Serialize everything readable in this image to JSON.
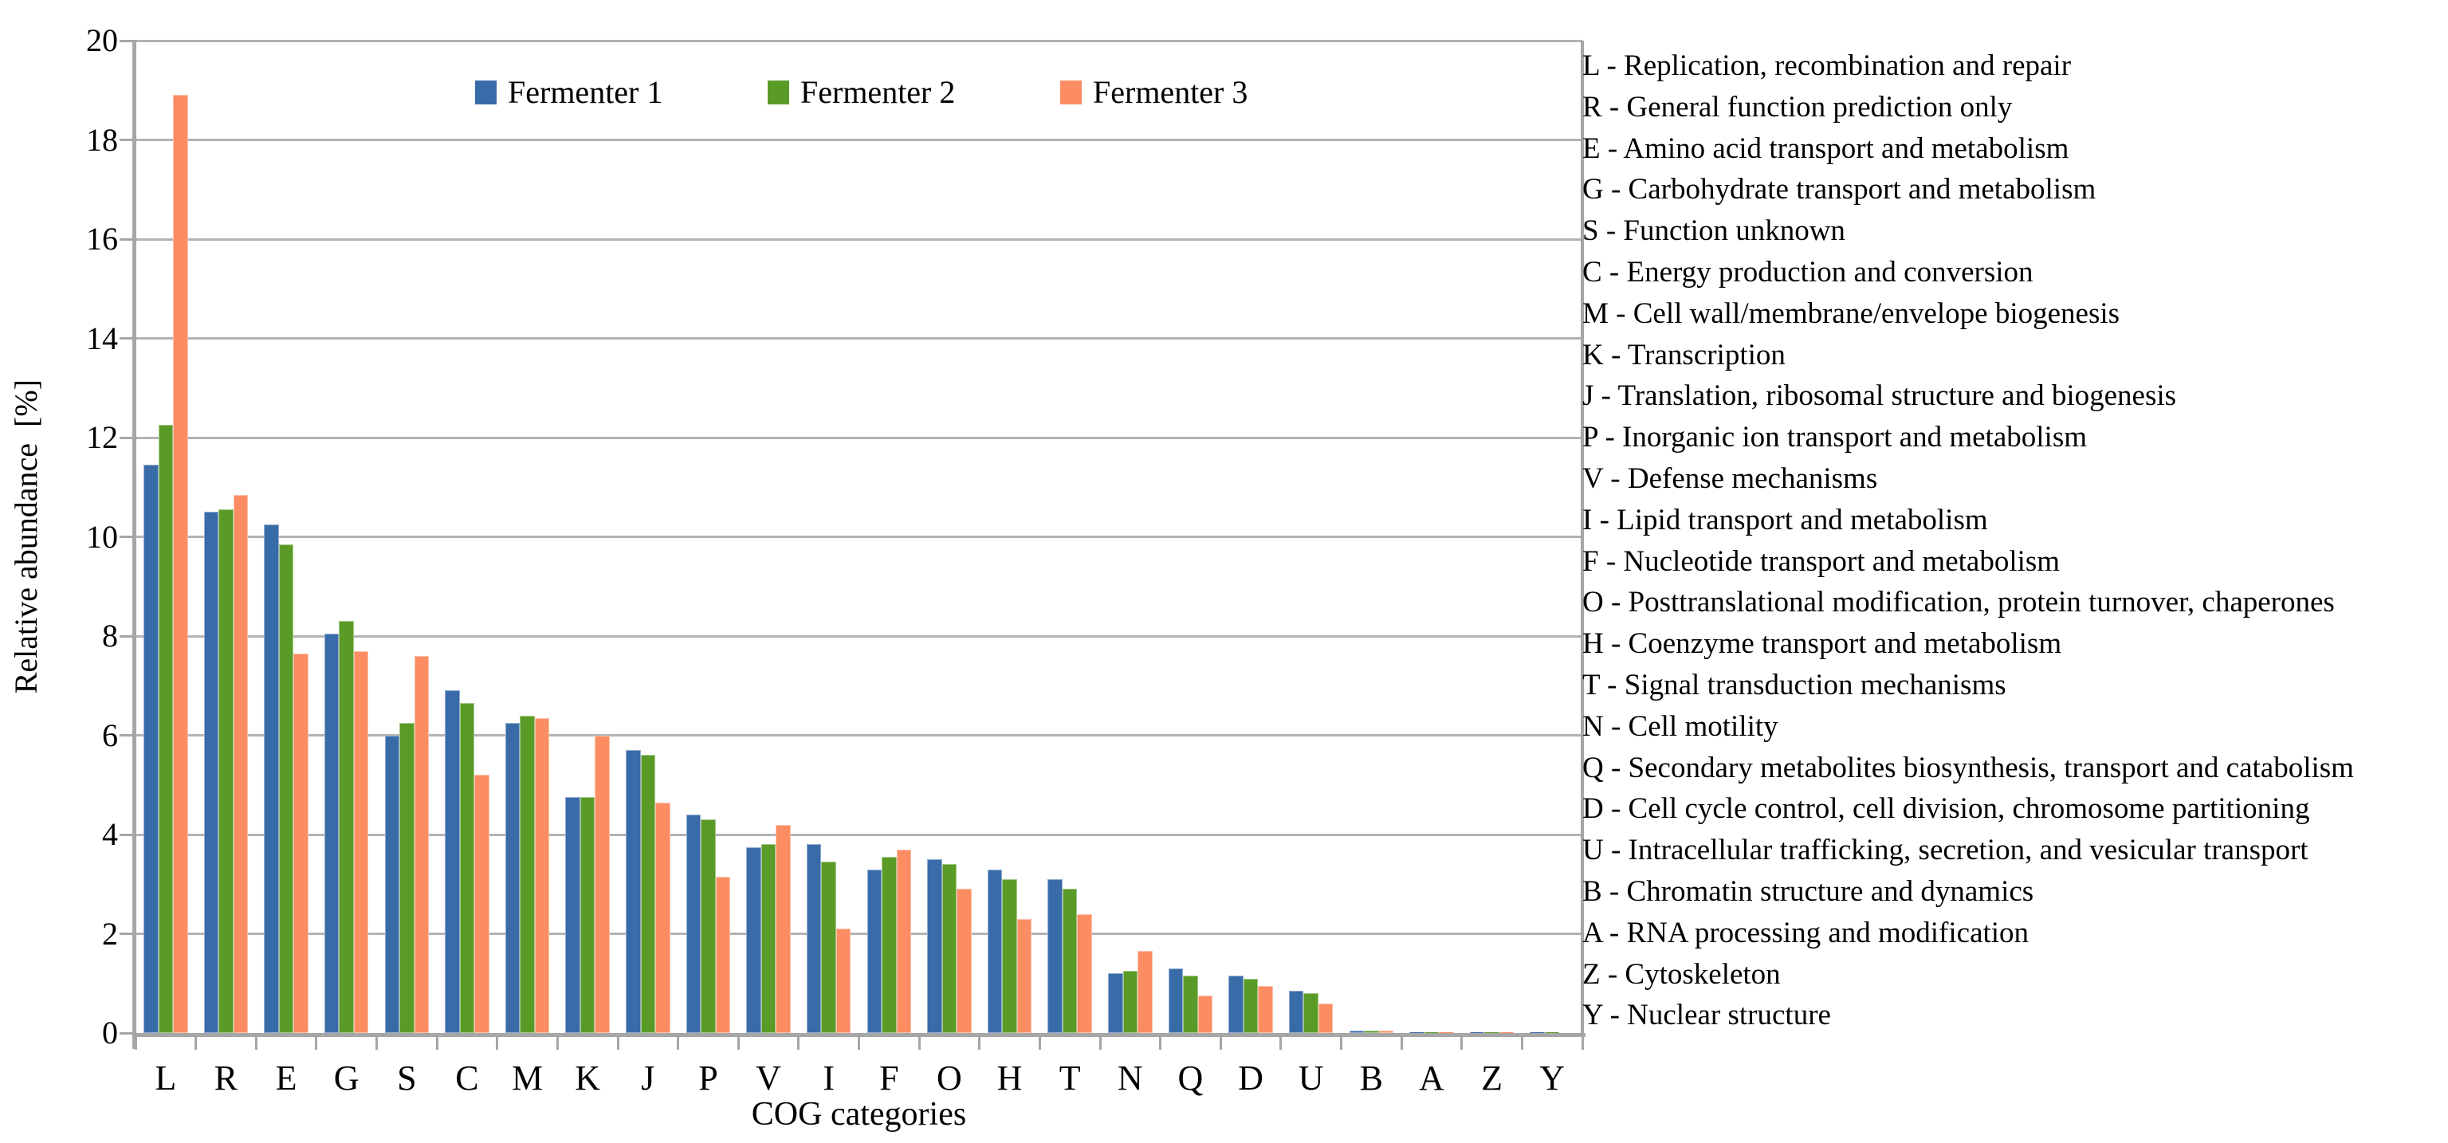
{
  "chart_data": {
    "type": "bar",
    "title": "",
    "xlabel": "COG categories",
    "ylabel": "Relative abundance  [%]",
    "ylim": [
      0,
      20
    ],
    "ytick_step": 2,
    "yticks": [
      0,
      2,
      4,
      6,
      8,
      10,
      12,
      14,
      16,
      18,
      20
    ],
    "grid": "horizontal",
    "grid_color": "#b3b3b3",
    "axis_color": "#a6a6a6",
    "legend_position": "top-center-inside",
    "categories": [
      "L",
      "R",
      "E",
      "G",
      "S",
      "C",
      "M",
      "K",
      "J",
      "P",
      "V",
      "I",
      "F",
      "O",
      "H",
      "T",
      "N",
      "Q",
      "D",
      "U",
      "B",
      "A",
      "Z",
      "Y"
    ],
    "series": [
      {
        "name": "Fermenter 1",
        "color": "#3A6BA9",
        "values": [
          11.45,
          10.5,
          10.25,
          8.05,
          6.0,
          6.9,
          6.25,
          4.75,
          5.7,
          4.4,
          3.75,
          3.8,
          3.3,
          3.5,
          3.3,
          3.1,
          1.2,
          1.3,
          1.15,
          0.85,
          0.05,
          0.02,
          0.02,
          0.01
        ]
      },
      {
        "name": "Fermenter 2",
        "color": "#5A9B28",
        "values": [
          12.25,
          10.55,
          9.85,
          8.3,
          6.25,
          6.65,
          6.4,
          4.75,
          5.6,
          4.3,
          3.8,
          3.45,
          3.55,
          3.4,
          3.1,
          2.9,
          1.25,
          1.15,
          1.1,
          0.8,
          0.05,
          0.02,
          0.02,
          0.01
        ]
      },
      {
        "name": "Fermenter 3",
        "color": "#FC8D63",
        "values": [
          18.9,
          10.85,
          7.65,
          7.7,
          7.6,
          5.2,
          6.35,
          6.0,
          4.65,
          3.15,
          4.2,
          2.1,
          3.7,
          2.9,
          2.3,
          2.4,
          1.65,
          0.75,
          0.95,
          0.6,
          0.05,
          0.02,
          0.01,
          0.0
        ]
      }
    ]
  },
  "category_legend": {
    "items": [
      {
        "code": "L",
        "description": "Replication, recombination and repair"
      },
      {
        "code": "R",
        "description": "General function prediction only"
      },
      {
        "code": "E",
        "description": "Amino acid transport and metabolism"
      },
      {
        "code": "G",
        "description": "Carbohydrate transport and metabolism"
      },
      {
        "code": "S",
        "description": "Function unknown"
      },
      {
        "code": "C",
        "description": "Energy production and conversion"
      },
      {
        "code": "M",
        "description": "Cell wall/membrane/envelope biogenesis"
      },
      {
        "code": "K",
        "description": "Transcription"
      },
      {
        "code": "J",
        "description": "Translation, ribosomal structure and biogenesis"
      },
      {
        "code": "P",
        "description": "Inorganic ion transport and metabolism"
      },
      {
        "code": "V",
        "description": "Defense mechanisms"
      },
      {
        "code": "I",
        "description": "Lipid transport and metabolism"
      },
      {
        "code": "F",
        "description": "Nucleotide transport and metabolism"
      },
      {
        "code": "O",
        "description": "Posttranslational modification, protein turnover, chaperones"
      },
      {
        "code": "H",
        "description": "Coenzyme transport and metabolism"
      },
      {
        "code": "T",
        "description": "Signal transduction mechanisms"
      },
      {
        "code": "N",
        "description": "Cell motility"
      },
      {
        "code": "Q",
        "description": "Secondary metabolites biosynthesis, transport and catabolism"
      },
      {
        "code": "D",
        "description": "Cell cycle control, cell division, chromosome partitioning"
      },
      {
        "code": "U",
        "description": "Intracellular trafficking, secretion, and vesicular transport"
      },
      {
        "code": "B",
        "description": "Chromatin structure and dynamics"
      },
      {
        "code": "A",
        "description": "RNA processing and modification"
      },
      {
        "code": "Z",
        "description": "Cytoskeleton"
      },
      {
        "code": "Y",
        "description": "Nuclear structure"
      }
    ]
  }
}
